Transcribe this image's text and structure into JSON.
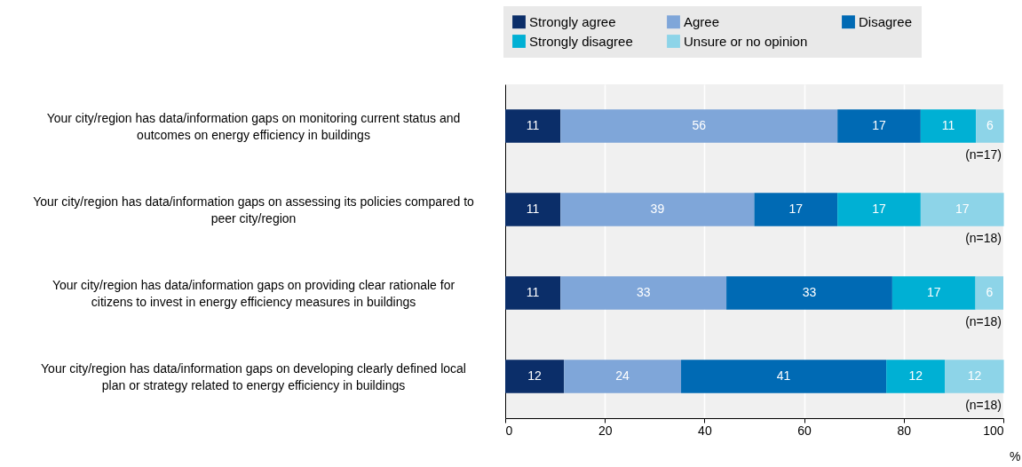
{
  "chart_data": {
    "type": "bar",
    "orientation": "horizontal",
    "stacked": true,
    "categories": [
      "Your city/region has data/information gaps on monitoring current status and outcomes on energy efficiency in buildings",
      "Your city/region has data/information gaps on assessing its policies compared to peer city/region",
      "Your city/region has data/information gaps on providing clear rationale for citizens to invest in energy efficiency measures in buildings",
      "Your city/region has data/information gaps on developing clearly defined local plan or strategy related to energy efficiency in buildings"
    ],
    "series": [
      {
        "name": "Strongly agree",
        "color": "#0b2e69",
        "values": [
          11.1,
          11.1,
          11.1,
          11.8
        ],
        "value_labels": [
          "11",
          "11",
          "11",
          "12"
        ]
      },
      {
        "name": "Agree",
        "color": "#7fa6d9",
        "values": [
          55.6,
          38.9,
          33.3,
          23.5
        ],
        "value_labels": [
          "56",
          "39",
          "33",
          "24"
        ]
      },
      {
        "name": "Disagree",
        "color": "#006ab4",
        "values": [
          16.7,
          16.7,
          33.3,
          41.2
        ],
        "value_labels": [
          "17",
          "17",
          "33",
          "41"
        ]
      },
      {
        "name": "Strongly disagree",
        "color": "#00b0d4",
        "values": [
          11.1,
          16.7,
          16.7,
          11.8
        ],
        "value_labels": [
          "11",
          "17",
          "17",
          "12"
        ]
      },
      {
        "name": "Unsure or no opinion",
        "color": "#8dd4e8",
        "values": [
          5.6,
          16.7,
          5.6,
          11.8
        ],
        "value_labels": [
          "6",
          "17",
          "6",
          "12"
        ]
      }
    ],
    "xlabel": "%",
    "xlim": [
      0,
      100
    ],
    "xticks": [
      0,
      20,
      40,
      60,
      80,
      100
    ],
    "grid": "x",
    "legend": "top",
    "annotations": [
      "(n=17)",
      "(n=18)",
      "(n=18)",
      "(n=18)"
    ]
  }
}
